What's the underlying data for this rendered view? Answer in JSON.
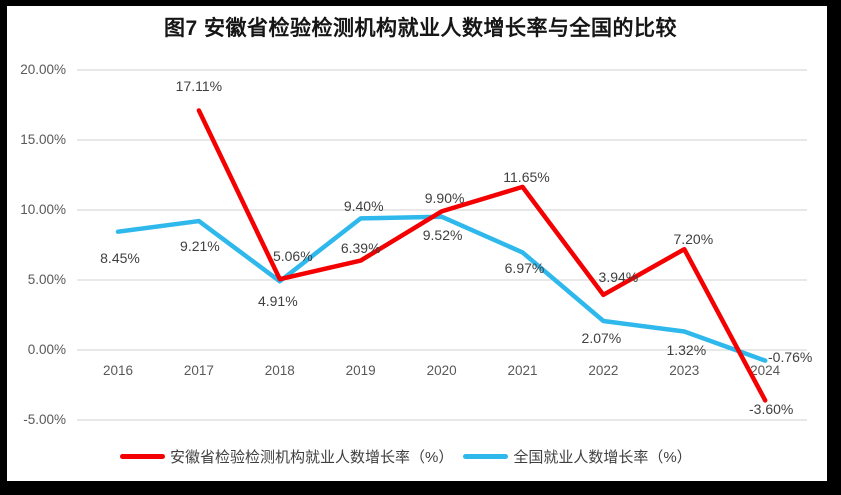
{
  "title": "图7 安徽省检验检测机构就业人数增长率与全国的比较",
  "legend": [
    {
      "label": "安徽省检验检测机构就业人数增长率（%）",
      "color": "#f40000"
    },
    {
      "label": "全国就业人数增长率（%）",
      "color": "#2fb8ec"
    }
  ],
  "colors": {
    "background": "#ffffff",
    "frame": "#000000",
    "gridline": "#dadada",
    "axis_text": "#595959",
    "data_label_text": "#3f3f3f",
    "series_anhui": "#f40000",
    "series_national": "#2fb8ec"
  },
  "chart_data": {
    "type": "line",
    "title": "图7 安徽省检验检测机构就业人数增长率与全国的比较",
    "xlabel": "",
    "ylabel": "",
    "categories": [
      "2016",
      "2017",
      "2018",
      "2019",
      "2020",
      "2021",
      "2022",
      "2023",
      "2024"
    ],
    "series": [
      {
        "name": "安徽省检验检测机构就业人数增长率（%）",
        "color": "#f40000",
        "values": [
          null,
          17.11,
          5.06,
          6.39,
          9.9,
          11.65,
          3.94,
          7.2,
          -3.6
        ],
        "labels": [
          "",
          "17.11%",
          "5.06%",
          "6.39%",
          "9.90%",
          "11.65%",
          "3.94%",
          "7.20%",
          "-3.60%"
        ],
        "label_offsets": [
          [
            0,
            0
          ],
          [
            0,
            -24
          ],
          [
            13,
            -23
          ],
          [
            0,
            -13
          ],
          [
            3,
            -13
          ],
          [
            4,
            -10
          ],
          [
            15,
            -18
          ],
          [
            9,
            -10
          ],
          [
            6,
            9
          ]
        ]
      },
      {
        "name": "全国就业人数增长率（%）",
        "color": "#2fb8ec",
        "values": [
          8.45,
          9.21,
          4.91,
          9.4,
          9.52,
          6.97,
          2.07,
          1.32,
          -0.76
        ],
        "labels": [
          "8.45%",
          "9.21%",
          "4.91%",
          "9.40%",
          "9.52%",
          "6.97%",
          "2.07%",
          "1.32%",
          "-0.76%"
        ],
        "label_offsets": [
          [
            2,
            26
          ],
          [
            1,
            25
          ],
          [
            -2,
            20
          ],
          [
            3,
            -12
          ],
          [
            1,
            18
          ],
          [
            2,
            16
          ],
          [
            -2,
            17
          ],
          [
            2,
            18
          ],
          [
            25,
            -4
          ]
        ]
      }
    ],
    "ylim": [
      -5,
      20
    ],
    "yticks": [
      20,
      15,
      10,
      5,
      0,
      -5
    ],
    "ytick_labels": [
      "20.00%",
      "15.00%",
      "10.00%",
      "5.00%",
      "0.00%",
      "-5.00%"
    ],
    "grid": true,
    "legend_position": "bottom"
  }
}
